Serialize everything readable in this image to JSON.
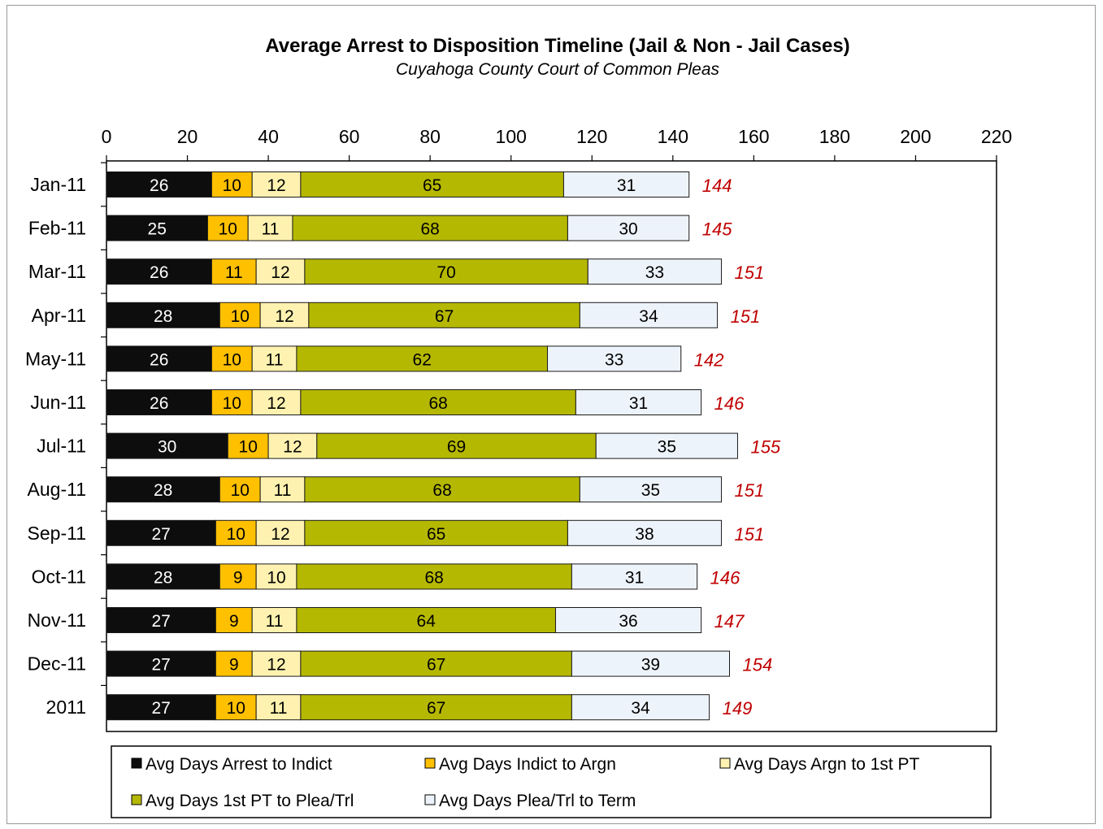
{
  "chart_data": {
    "type": "bar",
    "orientation": "horizontal",
    "stacked": true,
    "title": "Average Arrest to Disposition Timeline (Jail & Non - Jail Cases)",
    "subtitle": "Cuyahoga County Court of Common Pleas",
    "xlabel": "",
    "ylabel": "",
    "xlim": [
      0,
      220
    ],
    "xticks": [
      0,
      20,
      40,
      60,
      80,
      100,
      120,
      140,
      160,
      180,
      200,
      220
    ],
    "x_axis_position": "top",
    "grid": false,
    "legend_position": "bottom",
    "categories": [
      "Jan-11",
      "Feb-11",
      "Mar-11",
      "Apr-11",
      "May-11",
      "Jun-11",
      "Jul-11",
      "Aug-11",
      "Sep-11",
      "Oct-11",
      "Nov-11",
      "Dec-11",
      "2011"
    ],
    "series": [
      {
        "name": "Avg Days Arrest to Indict",
        "color": "#0d0d0d",
        "label_color": "#ffffff",
        "values": [
          26,
          25,
          26,
          28,
          26,
          26,
          30,
          28,
          27,
          28,
          27,
          27,
          27
        ]
      },
      {
        "name": "Avg Days Indict to Argn",
        "color": "#ffc000",
        "label_color": "#000000",
        "values": [
          10,
          10,
          11,
          10,
          10,
          10,
          10,
          10,
          10,
          9,
          9,
          9,
          10
        ]
      },
      {
        "name": "Avg Days Argn to 1st PT",
        "color": "#fff2b0",
        "label_color": "#000000",
        "values": [
          12,
          11,
          12,
          12,
          11,
          12,
          12,
          11,
          12,
          10,
          11,
          12,
          11
        ]
      },
      {
        "name": "Avg Days 1st PT to Plea/Trl",
        "color": "#b5b800",
        "label_color": "#000000",
        "values": [
          65,
          68,
          70,
          67,
          62,
          68,
          69,
          68,
          65,
          68,
          64,
          67,
          67
        ]
      },
      {
        "name": "Avg Days Plea/Trl to Term",
        "color": "#edf3fa",
        "label_color": "#000000",
        "values": [
          31,
          30,
          33,
          34,
          33,
          31,
          35,
          35,
          38,
          31,
          36,
          39,
          34
        ]
      }
    ],
    "totals": [
      144,
      145,
      151,
      151,
      142,
      146,
      155,
      151,
      151,
      146,
      147,
      154,
      149
    ],
    "total_color": "#c00000"
  }
}
